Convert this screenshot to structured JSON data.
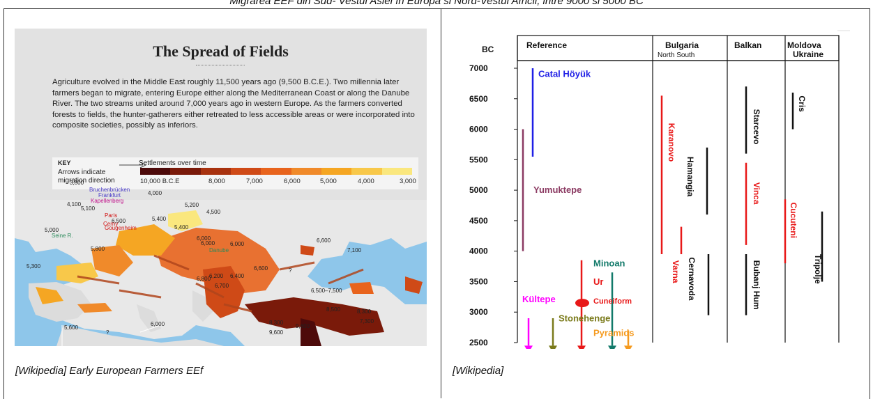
{
  "page": {
    "top_caption": "Migrarea EEF din Sud- Vestul Asiei  în  Europa si Nord-Vestul Africii, intre 9000 si 5000 BC",
    "left_caption": "[Wikipedia] Early European Farmers EEf",
    "right_caption": "[Wikipedia]"
  },
  "left_figure": {
    "title": "The Spread of Fields",
    "body": "Agriculture evolved in the Middle East roughly 11,500 years ago (9,500 B.C.E.). Two millennia later farmers began to migrate, entering Europe either along the Mediterranean Coast or along the Danube River. The two streams united around 7,000 years ago in western Europe. As the farmers converted forests to fields, the hunter-gatherers either retreated to less accessible areas or were incorporated into composite societies, possibly as inferiors.",
    "key": {
      "label": "KEY",
      "arrows_line1": "Arrows indicate",
      "arrows_line2": "migration direction",
      "settlements": "Settlements over time",
      "ticks": [
        "10,000 B.C.E",
        "8,000",
        "7,000",
        "6,000",
        "5,000",
        "4,000",
        "3,000"
      ],
      "colors": [
        "#4d0a0a",
        "#7a1a0a",
        "#a8320f",
        "#cf4a17",
        "#e8641d",
        "#f08a2a",
        "#f5a623",
        "#f8c84a",
        "#fae77e"
      ]
    },
    "map_labels": [
      "3,800",
      "Bruchenbrücken",
      "Frankfurt",
      "Kapellenberg",
      "4,000",
      "4,100",
      "5,100",
      "Paris",
      "6,500",
      "Cerny",
      "Gougenheim",
      "5,000",
      "Seine R.",
      "5,200",
      "4,500",
      "5,400",
      "5,400",
      "6,000",
      "6,000",
      "6,000",
      "6,600",
      "Danube",
      "5,800",
      "7,100",
      "5,300",
      "6,200",
      "6,400",
      "6,600",
      "6,500–7,500",
      "6,800",
      "6,700",
      "8,500",
      "8,300",
      "7,300",
      "5,600",
      "6,000",
      "8,300",
      "9,600",
      "9,600",
      "?",
      "?"
    ]
  },
  "right_figure": {
    "y_axis_label": "BC",
    "columns": {
      "reference": "Reference",
      "bulgaria": "Bulgaria",
      "bulgaria_sub": "North  South",
      "balkan": "Balkan",
      "moldova": "Moldova",
      "ukraine": "Ukraine"
    },
    "y_ticks": [
      "7000",
      "6500",
      "6000",
      "5500",
      "5000",
      "4500",
      "4000",
      "3500",
      "3000",
      "2500"
    ],
    "chart_data": {
      "type": "timeline",
      "y_range": [
        7000,
        2500
      ],
      "reference_cultures": [
        {
          "name": "Catal Höyük",
          "start": 7000,
          "end": 5550,
          "color": "#1f1fe6"
        },
        {
          "name": "Yumuktepe",
          "start": 6000,
          "end": 4000,
          "color": "#8b3a62"
        },
        {
          "name": "Minoan",
          "start": 3650,
          "end": 2400,
          "color": "#127a6a"
        },
        {
          "name": "Ur",
          "start": 3850,
          "end": 2400,
          "color": "#e81818"
        },
        {
          "name": "Cuneiform",
          "start": 3150,
          "end": 3150,
          "color": "#e81818"
        },
        {
          "name": "Kültepe",
          "start": 2900,
          "end": 2500,
          "color": "#ff00ff"
        },
        {
          "name": "Stonehenge",
          "start": 2900,
          "end": 2500,
          "color": "#7a7a1a"
        },
        {
          "name": "Pyramids",
          "start": 2700,
          "end": 2400,
          "color": "#f59a1e"
        }
      ],
      "bulgaria_cultures": [
        {
          "name": "Karanovo",
          "start": 6550,
          "end": 3950,
          "color": "#e81818"
        },
        {
          "name": "Hamangia",
          "start": 5700,
          "end": 4600,
          "color": "#111111"
        },
        {
          "name": "Varna",
          "start": 4400,
          "end": 3950,
          "color": "#e81818"
        },
        {
          "name": "Cernavoda",
          "start": 3950,
          "end": 2950,
          "color": "#111111"
        }
      ],
      "balkan_cultures": [
        {
          "name": "Starcevo",
          "start": 6700,
          "end": 5600,
          "color": "#111111"
        },
        {
          "name": "Vinca",
          "start": 5450,
          "end": 4100,
          "color": "#e81818"
        },
        {
          "name": "Bubanj Hum",
          "start": 3950,
          "end": 2950,
          "color": "#111111"
        }
      ],
      "moldova_cultures": [
        {
          "name": "Cris",
          "start": 6600,
          "end": 6000,
          "color": "#111111"
        },
        {
          "name": "Cucuteni",
          "start": 4850,
          "end": 3800,
          "color": "#e81818"
        },
        {
          "name": "Tripolje",
          "start": 4650,
          "end": 3500,
          "color": "#111111"
        }
      ]
    }
  }
}
